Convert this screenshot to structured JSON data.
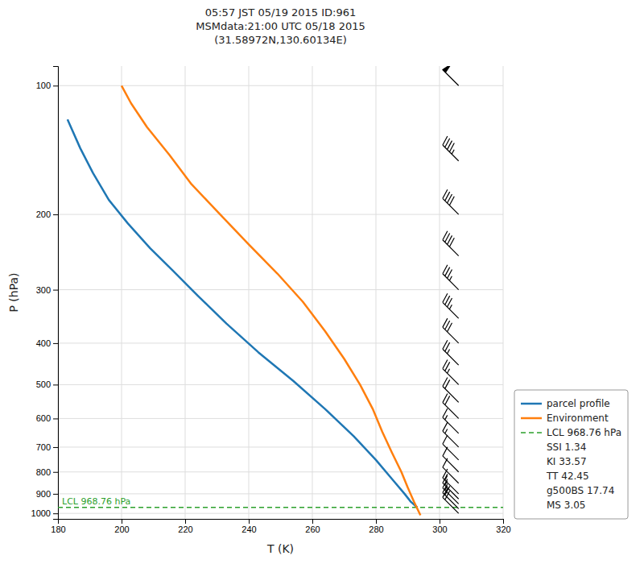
{
  "chart_data": {
    "type": "line",
    "title": "05:57 JST 05/19 2015  ID:961\nMSMdata:21:00 UTC 05/18 2015\n(31.58972N,130.60134E)",
    "xlabel": "T (K)",
    "ylabel": "P (hPa)",
    "log": "y",
    "grid": true,
    "legend": "lower right",
    "xlim": [
      180,
      320
    ],
    "ylim": [
      1030,
      90
    ],
    "xticks": [
      180,
      200,
      220,
      240,
      260,
      280,
      300,
      320
    ],
    "yticks": [
      100,
      200,
      300,
      400,
      500,
      600,
      700,
      800,
      900,
      1000
    ],
    "series": [
      {
        "name": "parcel profile",
        "color": "#1f77b4",
        "x": [
          183,
          187,
          191,
          196,
          202,
          209,
          216,
          224,
          233,
          243,
          254,
          264,
          273,
          280,
          285,
          289,
          291,
          293
        ],
        "values": [
          120,
          140,
          160,
          185,
          210,
          240,
          270,
          310,
          360,
          420,
          490,
          570,
          660,
          750,
          830,
          900,
          940,
          968
        ]
      },
      {
        "name": "Environment",
        "color": "#ff7f0e",
        "x": [
          200,
          203,
          208,
          215,
          222,
          231,
          240,
          249,
          257,
          264,
          270,
          275,
          279,
          282,
          285,
          288,
          290,
          292,
          294
        ],
        "values": [
          100,
          110,
          125,
          145,
          170,
          200,
          235,
          275,
          320,
          375,
          435,
          500,
          570,
          645,
          720,
          800,
          870,
          940,
          1010
        ]
      }
    ],
    "lcl": {
      "name": "LCL 968.76 hPa",
      "label": "LCL 968.76 hPa",
      "value": 968.76,
      "color": "#2ca02c",
      "line_style": "dashed"
    },
    "legend_extra": [
      "SSI 1.34",
      "KI 33.57",
      "TT 42.45",
      "g500BS 17.74",
      "MS 3.05"
    ],
    "wind": {
      "x": 306,
      "pressure": [
        100,
        150,
        200,
        250,
        300,
        350,
        400,
        450,
        500,
        550,
        600,
        650,
        700,
        750,
        800,
        850,
        900,
        925,
        950,
        975,
        1000
      ],
      "speed": [
        50,
        45,
        40,
        40,
        35,
        35,
        30,
        25,
        25,
        20,
        20,
        15,
        15,
        10,
        10,
        10,
        15,
        15,
        15,
        20,
        20
      ],
      "direction": [
        315,
        315,
        315,
        315,
        315,
        315,
        315,
        315,
        315,
        315,
        315,
        315,
        315,
        315,
        315,
        315,
        315,
        315,
        315,
        315,
        315
      ]
    }
  }
}
